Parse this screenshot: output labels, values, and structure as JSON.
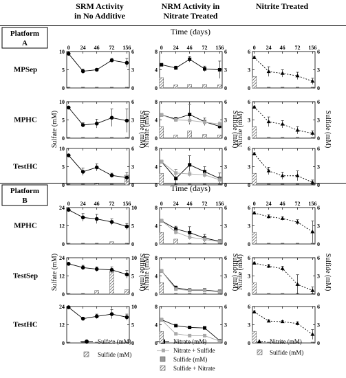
{
  "column_headers": [
    {
      "line1": "SRM Activity",
      "line2": "in No Additive"
    },
    {
      "line1": "NRM Activity in",
      "line2": "Nitrate Treated"
    },
    {
      "line1": "Nitrite Treated",
      "line2": ""
    }
  ],
  "time_axis_title": "Time (days)",
  "platforms": [
    {
      "line1": "Platform",
      "line2": "A"
    },
    {
      "line1": "Platform",
      "line2": "B"
    }
  ],
  "x_ticks": [
    "0",
    "24",
    "46",
    "72",
    "156"
  ],
  "y_titles": {
    "sulfate": "Sulfate (mM)",
    "sulfide": "Sulfide (mM)",
    "nitrate": "Nitrate (mM)",
    "nitrite": "Nitrite (mM)"
  },
  "legends": {
    "srm": [
      "Sulfate (mM)",
      "Sulfide (mM)"
    ],
    "nrm": [
      "Nitrate (mM)",
      "Nitrate + Sulfide",
      "Sulfide (mM)",
      "Sulfide + Nitrate"
    ],
    "nit": [
      "Nitrite (mM)",
      "Sulfide (mM)"
    ]
  },
  "chart_data": [
    {
      "type": "line",
      "platform": "A",
      "row_label": "MPSep",
      "column": "SRM",
      "x": [
        0,
        24,
        46,
        72,
        156
      ],
      "left_ticks": [
        0,
        5,
        10
      ],
      "right_ticks": [
        0,
        3,
        6
      ],
      "ylim": [
        0,
        10
      ],
      "ylim_right": [
        0,
        6
      ],
      "series": [
        {
          "name": "Sulfate (mM)",
          "values": [
            9.4,
            4.6,
            5.0,
            7.6,
            6.9
          ],
          "err": [
            0.3,
            0.6,
            0.4,
            0.5,
            1.2
          ]
        }
      ],
      "bars": [
        {
          "name": "Sulfide (mM)",
          "values": [
            0,
            0,
            0,
            0,
            0
          ]
        }
      ]
    },
    {
      "type": "line",
      "platform": "A",
      "row_label": "MPSep",
      "column": "NRM",
      "x": [
        0,
        24,
        46,
        72,
        156
      ],
      "left_ticks": [
        0,
        4,
        8
      ],
      "right_ticks": [
        0,
        3,
        6
      ],
      "ylim": [
        0,
        8
      ],
      "ylim_right": [
        0,
        6
      ],
      "series": [
        {
          "name": "Nitrate (mM)",
          "values": [
            5.1,
            4.4,
            6.3,
            4.2,
            4.0
          ],
          "err": [
            0.2,
            0.4,
            0.6,
            0.6,
            1.9
          ]
        }
      ],
      "bars": [
        {
          "name": "Sulfide (mM)",
          "values": [
            1.7,
            0.5,
            0.6,
            0.6,
            0.5
          ]
        }
      ]
    },
    {
      "type": "line",
      "platform": "A",
      "row_label": "MPSep",
      "column": "NIT",
      "x": [
        0,
        24,
        46,
        72,
        156
      ],
      "left_ticks": [
        0,
        3,
        6
      ],
      "right_ticks": [
        0,
        3,
        6
      ],
      "ylim": [
        0,
        6
      ],
      "ylim_right": [
        0,
        6
      ],
      "series": [
        {
          "name": "Nitrite (mM)",
          "values": [
            5.0,
            2.7,
            2.4,
            2.0,
            1.1
          ],
          "err": [
            0.2,
            0.8,
            0.6,
            0.6,
            0.5
          ]
        }
      ],
      "bars": [
        {
          "name": "Sulfide (mM)",
          "values": [
            1.9,
            0,
            0,
            0,
            0
          ]
        }
      ]
    },
    {
      "type": "line",
      "platform": "A",
      "row_label": "MPHC",
      "column": "SRM",
      "x": [
        0,
        24,
        46,
        72,
        156
      ],
      "left_ticks": [
        0,
        5,
        10
      ],
      "right_ticks": [
        0,
        3,
        6
      ],
      "ylim": [
        0,
        10
      ],
      "ylim_right": [
        0,
        6
      ],
      "series": [
        {
          "name": "Sulfate (mM)",
          "values": [
            8.4,
            3.6,
            4.0,
            5.6,
            4.8
          ],
          "err": [
            0.3,
            0.6,
            1.2,
            2.4,
            3.2
          ]
        }
      ],
      "bars": [
        {
          "name": "Sulfide (mM)",
          "values": [
            0,
            0,
            0,
            0,
            0
          ]
        }
      ]
    },
    {
      "type": "line",
      "platform": "A",
      "row_label": "MPHC",
      "column": "NRM",
      "x": [
        0,
        24,
        46,
        72,
        156
      ],
      "left_ticks": [
        0,
        4,
        8
      ],
      "right_ticks": [
        0,
        3,
        6
      ],
      "ylim": [
        0,
        8
      ],
      "ylim_right": [
        0,
        6
      ],
      "series": [
        {
          "name": "Nitrate (mM)",
          "values": [
            5.1,
            4.2,
            5.2,
            3.6,
            2.6
          ],
          "err": [
            0.2,
            0.4,
            2.2,
            0.8,
            0.6
          ]
        },
        {
          "name": "Nitrate + Sulfide",
          "values": [
            5.1,
            4.0,
            3.9,
            3.5,
            3.1
          ],
          "err": [
            0.2,
            0.4,
            0.6,
            0.5,
            0.5
          ]
        }
      ],
      "bars": [
        {
          "name": "Sulfide (mM)",
          "values": [
            1.9,
            0.5,
            1.2,
            0.6,
            0.5
          ]
        }
      ]
    },
    {
      "type": "line",
      "platform": "A",
      "row_label": "MPHC",
      "column": "NIT",
      "x": [
        0,
        24,
        46,
        72,
        156
      ],
      "left_ticks": [
        0,
        3,
        6
      ],
      "right_ticks": [
        0,
        3,
        6
      ],
      "ylim": [
        0,
        6
      ],
      "ylim_right": [
        0,
        6
      ],
      "series": [
        {
          "name": "Nitrite (mM)",
          "values": [
            5.1,
            2.7,
            2.3,
            1.3,
            0.8
          ],
          "err": [
            0.2,
            0.8,
            0.6,
            0.6,
            0.4
          ]
        }
      ],
      "bars": [
        {
          "name": "Sulfide (mM)",
          "values": [
            1.9,
            0,
            0,
            0,
            0
          ]
        }
      ]
    },
    {
      "type": "line",
      "platform": "A",
      "row_label": "TestHC",
      "column": "SRM",
      "x": [
        0,
        24,
        46,
        72,
        156
      ],
      "left_ticks": [
        0,
        5,
        10
      ],
      "right_ticks": [
        0,
        3,
        6
      ],
      "ylim": [
        0,
        10
      ],
      "ylim_right": [
        0,
        6
      ],
      "series": [
        {
          "name": "Sulfate (mM)",
          "values": [
            8.1,
            3.6,
            4.8,
            2.6,
            2.0
          ],
          "err": [
            0.3,
            1.0,
            1.0,
            0.6,
            1.4
          ]
        }
      ],
      "bars": [
        {
          "name": "Sulfide (mM)",
          "values": [
            0,
            0,
            0.2,
            0,
            1.6
          ]
        }
      ]
    },
    {
      "type": "line",
      "platform": "A",
      "row_label": "TestHC",
      "column": "NRM",
      "x": [
        0,
        24,
        46,
        72,
        156
      ],
      "left_ticks": [
        0,
        4,
        8
      ],
      "right_ticks": [
        0,
        3,
        6
      ],
      "ylim": [
        0,
        8
      ],
      "ylim_right": [
        0,
        6
      ],
      "series": [
        {
          "name": "Nitrate (mM)",
          "values": [
            5.1,
            1.4,
            4.4,
            2.9,
            1.4
          ],
          "err": [
            0.2,
            2.0,
            2.0,
            1.1,
            1.2
          ]
        },
        {
          "name": "Nitrate + Sulfide",
          "values": [
            5.1,
            2.6,
            2.4,
            2.2,
            1.1
          ],
          "err": [
            0.2,
            0.8,
            0.6,
            0.6,
            0.5
          ]
        }
      ],
      "bars": [
        {
          "name": "Sulfide (mM)",
          "values": [
            1.9,
            0,
            0,
            0,
            0
          ]
        }
      ]
    },
    {
      "type": "line",
      "platform": "A",
      "row_label": "TestHC",
      "column": "NIT",
      "x": [
        0,
        24,
        46,
        72,
        156
      ],
      "left_ticks": [
        0,
        3,
        6
      ],
      "right_ticks": [
        0,
        3,
        6
      ],
      "ylim": [
        0,
        6
      ],
      "ylim_right": [
        0,
        6
      ],
      "series": [
        {
          "name": "Nitrite (mM)",
          "values": [
            5.1,
            2.3,
            1.5,
            1.5,
            0.4
          ],
          "err": [
            0.2,
            0.6,
            0.6,
            0.8,
            0.4
          ]
        }
      ],
      "bars": [
        {
          "name": "Sulfide (mM)",
          "values": [
            1.9,
            0,
            0,
            0,
            0
          ]
        }
      ]
    },
    {
      "type": "line",
      "platform": "B",
      "row_label": "MPHC",
      "column": "SRM",
      "x": [
        0,
        24,
        46,
        72,
        156
      ],
      "left_ticks": [
        0,
        12,
        24
      ],
      "right_ticks": [
        0,
        5,
        10
      ],
      "ylim": [
        0,
        24
      ],
      "ylim_right": [
        0,
        10
      ],
      "series": [
        {
          "name": "Sulfate (mM)",
          "values": [
            22.5,
            17.5,
            16.5,
            14.5,
            11.5
          ],
          "err": [
            0.5,
            2.5,
            3.0,
            2.0,
            2.0
          ]
        }
      ],
      "bars": [
        {
          "name": "Sulfide (mM)",
          "values": [
            0,
            0,
            0,
            0.6,
            0
          ]
        }
      ]
    },
    {
      "type": "line",
      "platform": "B",
      "row_label": "MPHC",
      "column": "NRM",
      "x": [
        0,
        24,
        46,
        72,
        156
      ],
      "left_ticks": [
        0,
        4,
        8
      ],
      "right_ticks": [
        0,
        3,
        6
      ],
      "ylim": [
        0,
        8
      ],
      "ylim_right": [
        0,
        6
      ],
      "series": [
        {
          "name": "Nitrate (mM)",
          "values": [
            5.1,
            3.3,
            2.5,
            1.3,
            0.6
          ],
          "err": [
            0.2,
            0.6,
            1.3,
            0.8,
            0.3
          ]
        },
        {
          "name": "Nitrate + Sulfide",
          "values": [
            5.1,
            2.6,
            1.5,
            1.0,
            0.5
          ],
          "err": [
            0.2,
            0.5,
            0.6,
            0.4,
            0.3
          ]
        }
      ],
      "bars": [
        {
          "name": "Sulfide (mM)",
          "values": [
            1.9,
            0.8,
            0,
            0,
            0
          ]
        }
      ]
    },
    {
      "type": "line",
      "platform": "B",
      "row_label": "MPHC",
      "column": "NIT",
      "x": [
        0,
        24,
        46,
        72,
        156
      ],
      "left_ticks": [
        0,
        3,
        6
      ],
      "right_ticks": [
        0,
        3,
        6
      ],
      "ylim": [
        0,
        6
      ],
      "ylim_right": [
        0,
        6
      ],
      "series": [
        {
          "name": "Nitrite (mM)",
          "values": [
            5.1,
            4.5,
            4.2,
            3.6,
            2.0
          ],
          "err": [
            0.2,
            0.3,
            0.3,
            0.4,
            1.8
          ]
        }
      ],
      "bars": [
        {
          "name": "Sulfide (mM)",
          "values": [
            1.9,
            0,
            0,
            0,
            0
          ]
        }
      ]
    },
    {
      "type": "line",
      "platform": "B",
      "row_label": "TestSep",
      "column": "SRM",
      "x": [
        0,
        24,
        46,
        72,
        156
      ],
      "left_ticks": [
        0,
        12,
        24
      ],
      "right_ticks": [
        0,
        5,
        10
      ],
      "ylim": [
        0,
        24
      ],
      "ylim_right": [
        0,
        10
      ],
      "series": [
        {
          "name": "Sulfate (mM)",
          "values": [
            20.0,
            17.5,
            16.5,
            16.0,
            13.0
          ],
          "err": [
            0.5,
            1.5,
            1.5,
            2.0,
            2.5
          ]
        }
      ],
      "bars": [
        {
          "name": "Sulfide (mM)",
          "values": [
            0,
            0,
            1.0,
            6.4,
            1.2
          ]
        }
      ]
    },
    {
      "type": "line",
      "platform": "B",
      "row_label": "TestSep",
      "column": "NRM",
      "x": [
        0,
        24,
        46,
        72,
        156
      ],
      "left_ticks": [
        0,
        4,
        8
      ],
      "right_ticks": [
        0,
        3,
        6
      ],
      "ylim": [
        0,
        8
      ],
      "ylim_right": [
        0,
        6
      ],
      "series": [
        {
          "name": "Nitrate (mM)",
          "values": [
            5.1,
            1.4,
            0.9,
            0.9,
            0.6
          ],
          "err": [
            0.2,
            0.4,
            0.3,
            0.3,
            0.3
          ]
        },
        {
          "name": "Nitrate + Sulfide",
          "values": [
            5.1,
            1.1,
            0.8,
            0.8,
            0.5
          ],
          "err": [
            0.2,
            0.3,
            0.3,
            0.3,
            0.3
          ]
        }
      ],
      "bars": [
        {
          "name": "Sulfide (mM)",
          "values": [
            1.9,
            0,
            0,
            0,
            0
          ]
        }
      ]
    },
    {
      "type": "line",
      "platform": "B",
      "row_label": "TestSep",
      "column": "NIT",
      "x": [
        0,
        24,
        46,
        72,
        156
      ],
      "left_ticks": [
        0,
        3,
        6
      ],
      "right_ticks": [
        0,
        3,
        6
      ],
      "ylim": [
        0,
        6
      ],
      "ylim_right": [
        0,
        6
      ],
      "series": [
        {
          "name": "Nitrite (mM)",
          "values": [
            5.1,
            4.6,
            4.2,
            1.6,
            0.6
          ],
          "err": [
            0.2,
            0.3,
            0.4,
            1.6,
            0.6
          ]
        }
      ],
      "bars": [
        {
          "name": "Sulfide (mM)",
          "values": [
            1.9,
            0,
            0,
            0,
            0
          ]
        }
      ]
    },
    {
      "type": "line",
      "platform": "B",
      "row_label": "TestHC",
      "column": "SRM",
      "x": [
        0,
        24,
        46,
        72,
        156
      ],
      "left_ticks": [
        0,
        12,
        24
      ],
      "right_ticks": [
        0,
        5,
        10
      ],
      "ylim": [
        0,
        24
      ],
      "ylim_right": [
        0,
        10
      ],
      "series": [
        {
          "name": "Sulfate (mM)",
          "values": [
            23.5,
            16.0,
            17.5,
            19.0,
            17.0
          ],
          "err": [
            0.5,
            1.0,
            1.5,
            3.0,
            2.0
          ]
        }
      ],
      "bars": [
        {
          "name": "Sulfide (mM)",
          "values": [
            0,
            0,
            0,
            0.5,
            0
          ]
        }
      ]
    },
    {
      "type": "line",
      "platform": "B",
      "row_label": "TestHC",
      "column": "NRM",
      "x": [
        0,
        24,
        46,
        72,
        156
      ],
      "left_ticks": [
        0,
        4,
        8
      ],
      "right_ticks": [
        0,
        3,
        6
      ],
      "ylim": [
        0,
        8
      ],
      "ylim_right": [
        0,
        6
      ],
      "series": [
        {
          "name": "Nitrate (mM)",
          "values": [
            5.1,
            3.8,
            3.4,
            3.3,
            0.5
          ],
          "err": [
            0.2,
            0.3,
            0.3,
            0.3,
            0.3
          ]
        },
        {
          "name": "Nitrate + Sulfide",
          "values": [
            5.1,
            2.0,
            1.6,
            1.6,
            0.4
          ],
          "err": [
            0.2,
            0.3,
            0.3,
            0.3,
            0.2
          ]
        }
      ],
      "bars": [
        {
          "name": "Sulfide (mM)",
          "values": [
            1.9,
            0,
            0,
            0,
            0
          ]
        }
      ]
    },
    {
      "type": "line",
      "platform": "B",
      "row_label": "TestHC",
      "column": "NIT",
      "x": [
        0,
        24,
        46,
        72,
        156
      ],
      "left_ticks": [
        0,
        3,
        6
      ],
      "right_ticks": [
        0,
        3,
        6
      ],
      "ylim": [
        0,
        6
      ],
      "ylim_right": [
        0,
        6
      ],
      "series": [
        {
          "name": "Nitrite (mM)",
          "values": [
            5.1,
            3.6,
            3.5,
            3.2,
            1.4
          ],
          "err": [
            0.2,
            0.2,
            0.2,
            0.3,
            0.8
          ]
        }
      ],
      "bars": [
        {
          "name": "Sulfide (mM)",
          "values": [
            1.9,
            0,
            0,
            0,
            0
          ]
        }
      ]
    }
  ]
}
